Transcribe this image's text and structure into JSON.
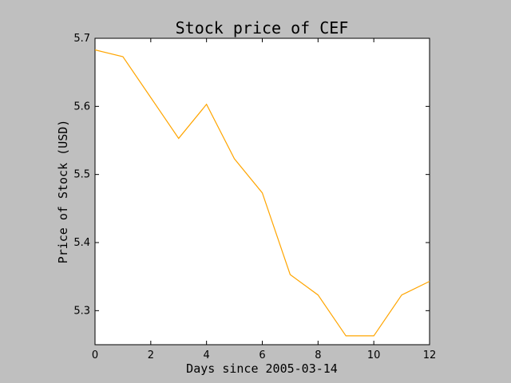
{
  "chart_data": {
    "type": "line",
    "title": "Stock price of CEF",
    "xlabel": "Days since 2005-03-14",
    "ylabel": "Price of Stock (USD)",
    "xlim": [
      0,
      12
    ],
    "ylim": [
      5.25,
      5.7
    ],
    "xticks": [
      0,
      2,
      4,
      6,
      8,
      10,
      12
    ],
    "yticks": [
      5.3,
      5.4,
      5.5,
      5.6,
      5.7
    ],
    "grid": false,
    "series": [
      {
        "color": "#ffa500",
        "x": [
          0,
          1,
          2,
          3,
          4,
          5,
          6,
          7,
          8,
          9,
          10,
          11,
          12
        ],
        "values": [
          5.683,
          5.673,
          5.613,
          5.553,
          5.603,
          5.523,
          5.473,
          5.353,
          5.323,
          5.263,
          5.263,
          5.323,
          5.343
        ]
      }
    ]
  }
}
